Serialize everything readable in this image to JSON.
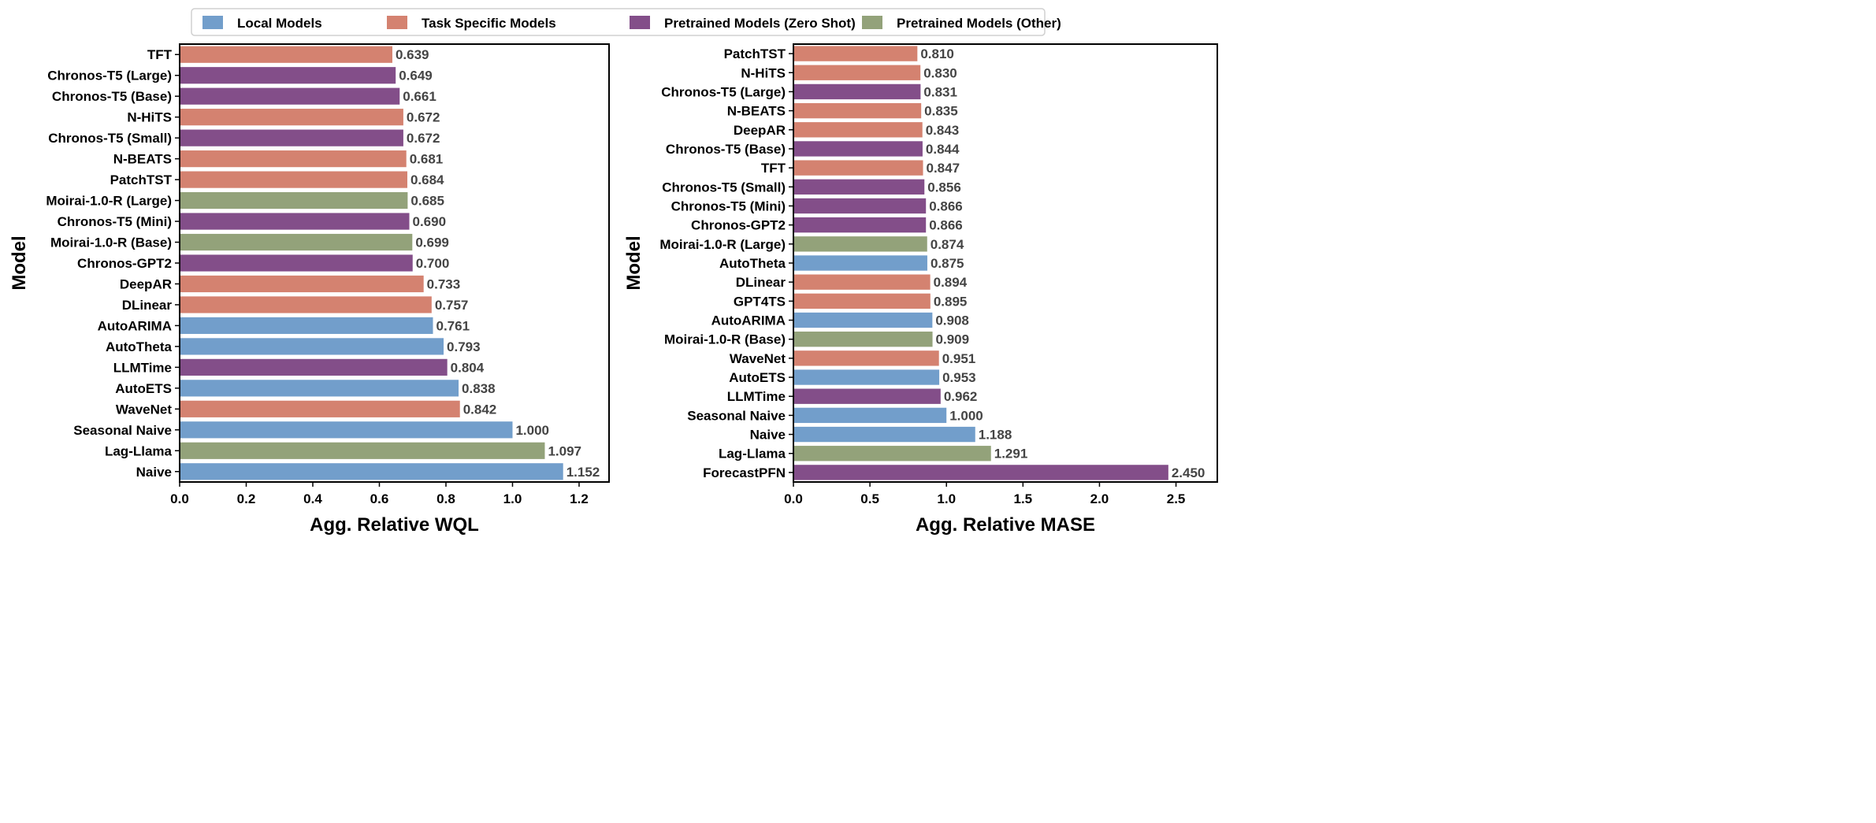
{
  "colors": {
    "local": "#729ecb",
    "task": "#d48270",
    "zeroshot": "#834e89",
    "other": "#93a27a"
  },
  "legend": [
    {
      "group": "local",
      "label": "Local Models"
    },
    {
      "group": "task",
      "label": "Task Specific Models"
    },
    {
      "group": "zeroshot",
      "label": "Pretrained Models (Zero Shot)"
    },
    {
      "group": "other",
      "label": "Pretrained Models (Other)"
    }
  ],
  "chart_data": [
    {
      "type": "bar",
      "orientation": "horizontal",
      "xlabel": "Agg. Relative WQL",
      "ylabel": "Model",
      "xlim": [
        0,
        1.29
      ],
      "xticks": [
        0.0,
        0.2,
        0.4,
        0.6,
        0.8,
        1.0,
        1.2
      ],
      "xtick_labels": [
        "0.0",
        "0.2",
        "0.4",
        "0.6",
        "0.8",
        "1.0",
        "1.2"
      ],
      "categories": [
        "TFT",
        "Chronos-T5 (Large)",
        "Chronos-T5 (Base)",
        "N-HiTS",
        "Chronos-T5 (Small)",
        "N-BEATS",
        "PatchTST",
        "Moirai-1.0-R (Large)",
        "Chronos-T5 (Mini)",
        "Moirai-1.0-R (Base)",
        "Chronos-GPT2",
        "DeepAR",
        "DLinear",
        "AutoARIMA",
        "AutoTheta",
        "LLMTime",
        "AutoETS",
        "WaveNet",
        "Seasonal Naive",
        "Lag-Llama",
        "Naive"
      ],
      "values": [
        0.639,
        0.649,
        0.661,
        0.672,
        0.672,
        0.681,
        0.684,
        0.685,
        0.69,
        0.699,
        0.7,
        0.733,
        0.757,
        0.761,
        0.793,
        0.804,
        0.838,
        0.842,
        1.0,
        1.097,
        1.152
      ],
      "value_labels": [
        "0.639",
        "0.649",
        "0.661",
        "0.672",
        "0.672",
        "0.681",
        "0.684",
        "0.685",
        "0.690",
        "0.699",
        "0.700",
        "0.733",
        "0.757",
        "0.761",
        "0.793",
        "0.804",
        "0.838",
        "0.842",
        "1.000",
        "1.097",
        "1.152"
      ],
      "groups": [
        "task",
        "zeroshot",
        "zeroshot",
        "task",
        "zeroshot",
        "task",
        "task",
        "other",
        "zeroshot",
        "other",
        "zeroshot",
        "task",
        "task",
        "local",
        "local",
        "zeroshot",
        "local",
        "task",
        "local",
        "other",
        "local"
      ]
    },
    {
      "type": "bar",
      "orientation": "horizontal",
      "xlabel": "Agg. Relative MASE",
      "ylabel": "Model",
      "xlim": [
        0,
        2.77
      ],
      "xticks": [
        0.0,
        0.5,
        1.0,
        1.5,
        2.0,
        2.5
      ],
      "xtick_labels": [
        "0.0",
        "0.5",
        "1.0",
        "1.5",
        "2.0",
        "2.5"
      ],
      "categories": [
        "PatchTST",
        "N-HiTS",
        "Chronos-T5 (Large)",
        "N-BEATS",
        "DeepAR",
        "Chronos-T5 (Base)",
        "TFT",
        "Chronos-T5 (Small)",
        "Chronos-T5 (Mini)",
        "Chronos-GPT2",
        "Moirai-1.0-R (Large)",
        "AutoTheta",
        "DLinear",
        "GPT4TS",
        "AutoARIMA",
        "Moirai-1.0-R (Base)",
        "WaveNet",
        "AutoETS",
        "LLMTime",
        "Seasonal Naive",
        "Naive",
        "Lag-Llama",
        "ForecastPFN"
      ],
      "values": [
        0.81,
        0.83,
        0.831,
        0.835,
        0.843,
        0.844,
        0.847,
        0.856,
        0.866,
        0.866,
        0.874,
        0.875,
        0.894,
        0.895,
        0.908,
        0.909,
        0.951,
        0.953,
        0.962,
        1.0,
        1.188,
        1.291,
        2.45
      ],
      "value_labels": [
        "0.810",
        "0.830",
        "0.831",
        "0.835",
        "0.843",
        "0.844",
        "0.847",
        "0.856",
        "0.866",
        "0.866",
        "0.874",
        "0.875",
        "0.894",
        "0.895",
        "0.908",
        "0.909",
        "0.951",
        "0.953",
        "0.962",
        "1.000",
        "1.188",
        "1.291",
        "2.450"
      ],
      "groups": [
        "task",
        "task",
        "zeroshot",
        "task",
        "task",
        "zeroshot",
        "task",
        "zeroshot",
        "zeroshot",
        "zeroshot",
        "other",
        "local",
        "task",
        "task",
        "local",
        "other",
        "task",
        "local",
        "zeroshot",
        "local",
        "local",
        "other",
        "zeroshot"
      ]
    }
  ]
}
